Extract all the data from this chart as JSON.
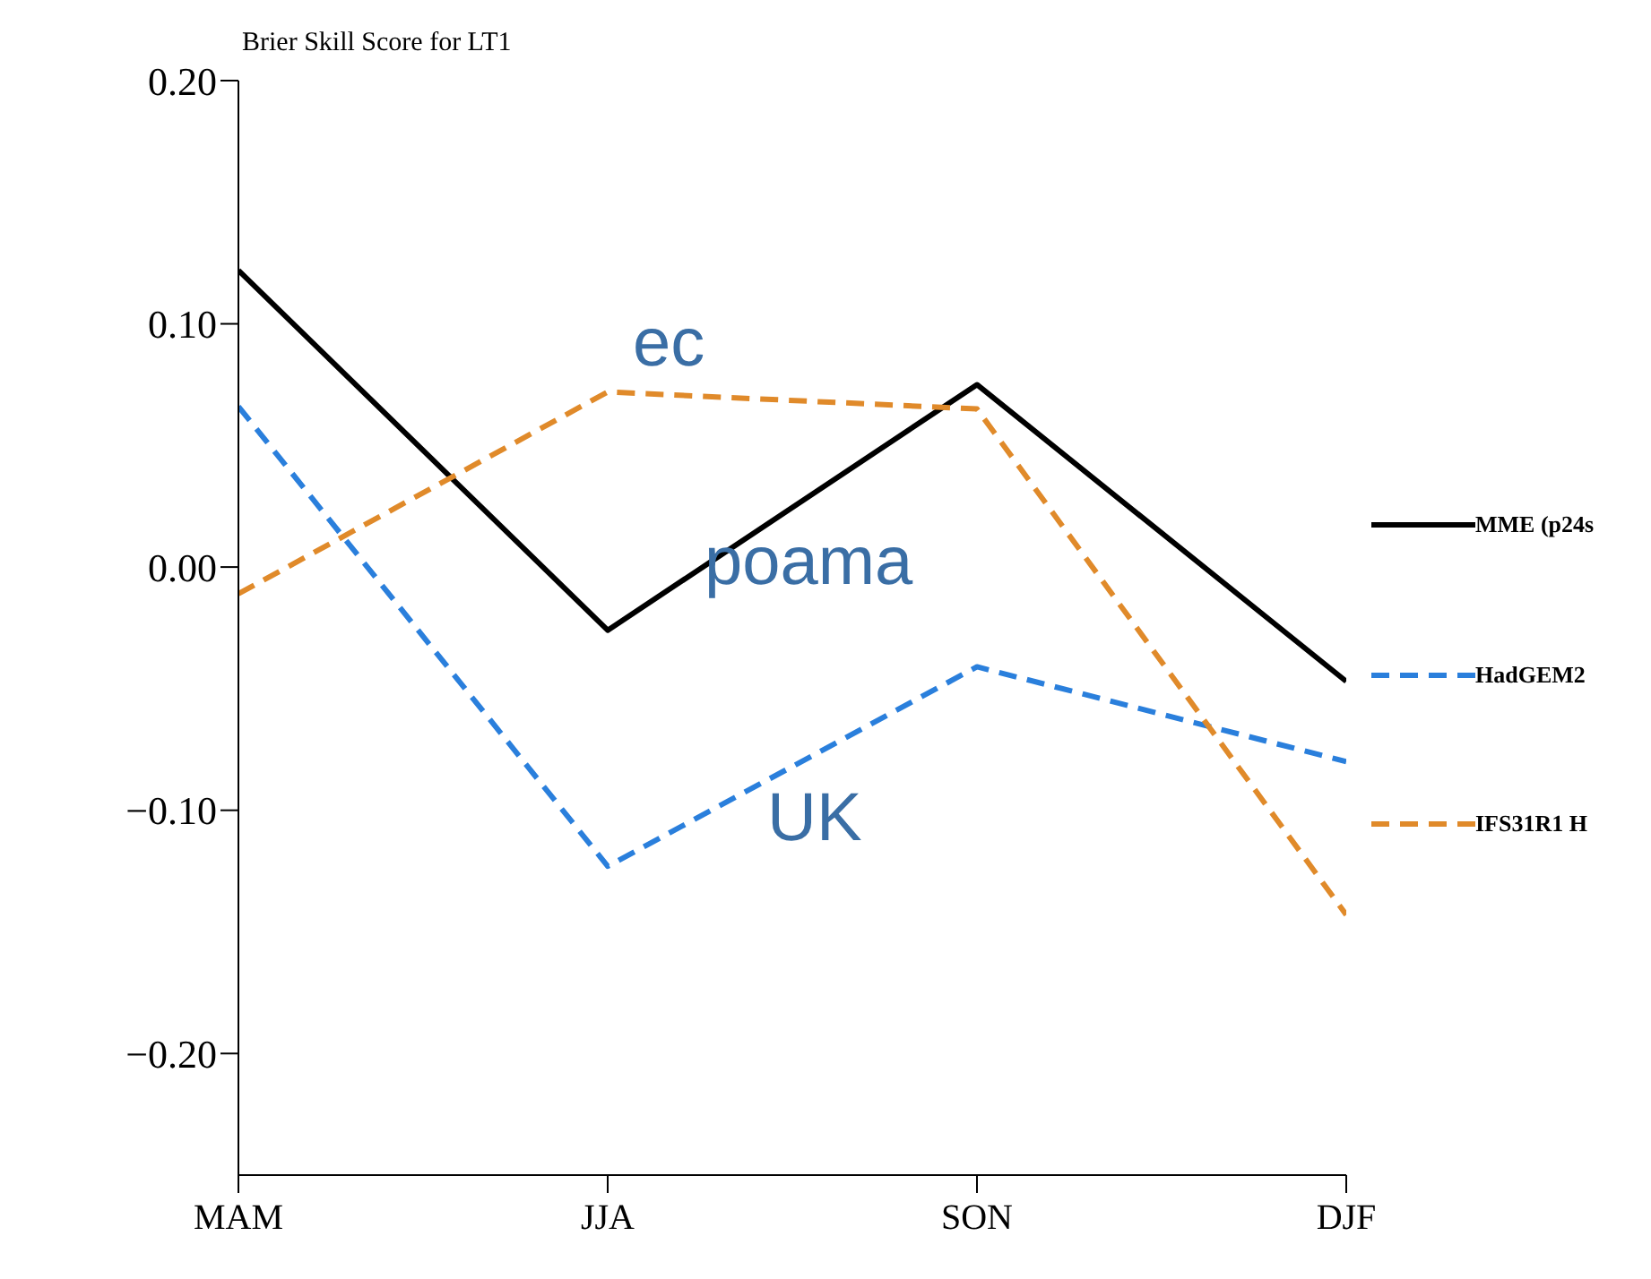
{
  "chart_data": {
    "type": "line",
    "title": "Brier Skill Score for LT1",
    "categories": [
      "MAM",
      "JJA",
      "SON",
      "DJF"
    ],
    "series": [
      {
        "name": "MME (p24s",
        "color": "#000000",
        "line_style": "solid",
        "values": [
          0.122,
          -0.026,
          0.075,
          -0.047
        ]
      },
      {
        "name": "HadGEM2",
        "color": "#2a7fdc",
        "line_style": "dashed",
        "values": [
          0.066,
          -0.123,
          -0.041,
          -0.08
        ]
      },
      {
        "name": "IFS31R1 H",
        "color": "#e08a2a",
        "line_style": "dashed",
        "values": [
          -0.011,
          0.072,
          0.065,
          -0.143
        ]
      }
    ],
    "ylim": [
      -0.25,
      0.2
    ],
    "yticks": [
      {
        "value": -0.2,
        "label": "−0.20"
      },
      {
        "value": -0.1,
        "label": "−0.10"
      },
      {
        "value": 0,
        "label": "0.00"
      },
      {
        "value": 0.1,
        "label": "0.10"
      },
      {
        "value": 0.2,
        "label": "0.20"
      }
    ],
    "annotations": [
      "ec",
      "poama",
      "UK"
    ],
    "legend": "right",
    "grid": false,
    "marker": "none"
  }
}
